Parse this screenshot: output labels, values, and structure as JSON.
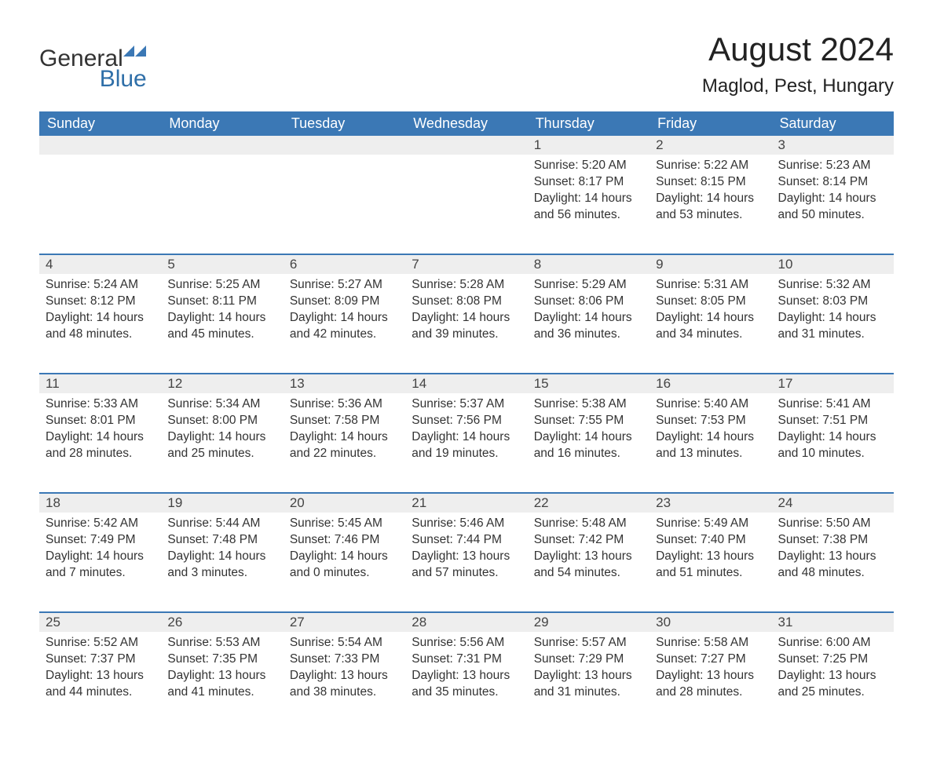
{
  "brand": {
    "general": "General",
    "blue": "Blue"
  },
  "title": "August 2024",
  "location": "Maglod, Pest, Hungary",
  "colors": {
    "header_bg": "#3b78b5",
    "header_text": "#ffffff",
    "daynum_bg": "#eeeeee",
    "accent_line": "#3b78b5",
    "body_text": "#333333",
    "brand_blue": "#2f6fa8",
    "background": "#ffffff"
  },
  "typography": {
    "title_fontsize": 42,
    "location_fontsize": 24,
    "dayheader_fontsize": 18,
    "cell_fontsize": 15.5
  },
  "day_headers": [
    "Sunday",
    "Monday",
    "Tuesday",
    "Wednesday",
    "Thursday",
    "Friday",
    "Saturday"
  ],
  "weeks": [
    [
      null,
      null,
      null,
      null,
      {
        "n": "1",
        "sunrise": "Sunrise: 5:20 AM",
        "sunset": "Sunset: 8:17 PM",
        "daylight": "Daylight: 14 hours and 56 minutes."
      },
      {
        "n": "2",
        "sunrise": "Sunrise: 5:22 AM",
        "sunset": "Sunset: 8:15 PM",
        "daylight": "Daylight: 14 hours and 53 minutes."
      },
      {
        "n": "3",
        "sunrise": "Sunrise: 5:23 AM",
        "sunset": "Sunset: 8:14 PM",
        "daylight": "Daylight: 14 hours and 50 minutes."
      }
    ],
    [
      {
        "n": "4",
        "sunrise": "Sunrise: 5:24 AM",
        "sunset": "Sunset: 8:12 PM",
        "daylight": "Daylight: 14 hours and 48 minutes."
      },
      {
        "n": "5",
        "sunrise": "Sunrise: 5:25 AM",
        "sunset": "Sunset: 8:11 PM",
        "daylight": "Daylight: 14 hours and 45 minutes."
      },
      {
        "n": "6",
        "sunrise": "Sunrise: 5:27 AM",
        "sunset": "Sunset: 8:09 PM",
        "daylight": "Daylight: 14 hours and 42 minutes."
      },
      {
        "n": "7",
        "sunrise": "Sunrise: 5:28 AM",
        "sunset": "Sunset: 8:08 PM",
        "daylight": "Daylight: 14 hours and 39 minutes."
      },
      {
        "n": "8",
        "sunrise": "Sunrise: 5:29 AM",
        "sunset": "Sunset: 8:06 PM",
        "daylight": "Daylight: 14 hours and 36 minutes."
      },
      {
        "n": "9",
        "sunrise": "Sunrise: 5:31 AM",
        "sunset": "Sunset: 8:05 PM",
        "daylight": "Daylight: 14 hours and 34 minutes."
      },
      {
        "n": "10",
        "sunrise": "Sunrise: 5:32 AM",
        "sunset": "Sunset: 8:03 PM",
        "daylight": "Daylight: 14 hours and 31 minutes."
      }
    ],
    [
      {
        "n": "11",
        "sunrise": "Sunrise: 5:33 AM",
        "sunset": "Sunset: 8:01 PM",
        "daylight": "Daylight: 14 hours and 28 minutes."
      },
      {
        "n": "12",
        "sunrise": "Sunrise: 5:34 AM",
        "sunset": "Sunset: 8:00 PM",
        "daylight": "Daylight: 14 hours and 25 minutes."
      },
      {
        "n": "13",
        "sunrise": "Sunrise: 5:36 AM",
        "sunset": "Sunset: 7:58 PM",
        "daylight": "Daylight: 14 hours and 22 minutes."
      },
      {
        "n": "14",
        "sunrise": "Sunrise: 5:37 AM",
        "sunset": "Sunset: 7:56 PM",
        "daylight": "Daylight: 14 hours and 19 minutes."
      },
      {
        "n": "15",
        "sunrise": "Sunrise: 5:38 AM",
        "sunset": "Sunset: 7:55 PM",
        "daylight": "Daylight: 14 hours and 16 minutes."
      },
      {
        "n": "16",
        "sunrise": "Sunrise: 5:40 AM",
        "sunset": "Sunset: 7:53 PM",
        "daylight": "Daylight: 14 hours and 13 minutes."
      },
      {
        "n": "17",
        "sunrise": "Sunrise: 5:41 AM",
        "sunset": "Sunset: 7:51 PM",
        "daylight": "Daylight: 14 hours and 10 minutes."
      }
    ],
    [
      {
        "n": "18",
        "sunrise": "Sunrise: 5:42 AM",
        "sunset": "Sunset: 7:49 PM",
        "daylight": "Daylight: 14 hours and 7 minutes."
      },
      {
        "n": "19",
        "sunrise": "Sunrise: 5:44 AM",
        "sunset": "Sunset: 7:48 PM",
        "daylight": "Daylight: 14 hours and 3 minutes."
      },
      {
        "n": "20",
        "sunrise": "Sunrise: 5:45 AM",
        "sunset": "Sunset: 7:46 PM",
        "daylight": "Daylight: 14 hours and 0 minutes."
      },
      {
        "n": "21",
        "sunrise": "Sunrise: 5:46 AM",
        "sunset": "Sunset: 7:44 PM",
        "daylight": "Daylight: 13 hours and 57 minutes."
      },
      {
        "n": "22",
        "sunrise": "Sunrise: 5:48 AM",
        "sunset": "Sunset: 7:42 PM",
        "daylight": "Daylight: 13 hours and 54 minutes."
      },
      {
        "n": "23",
        "sunrise": "Sunrise: 5:49 AM",
        "sunset": "Sunset: 7:40 PM",
        "daylight": "Daylight: 13 hours and 51 minutes."
      },
      {
        "n": "24",
        "sunrise": "Sunrise: 5:50 AM",
        "sunset": "Sunset: 7:38 PM",
        "daylight": "Daylight: 13 hours and 48 minutes."
      }
    ],
    [
      {
        "n": "25",
        "sunrise": "Sunrise: 5:52 AM",
        "sunset": "Sunset: 7:37 PM",
        "daylight": "Daylight: 13 hours and 44 minutes."
      },
      {
        "n": "26",
        "sunrise": "Sunrise: 5:53 AM",
        "sunset": "Sunset: 7:35 PM",
        "daylight": "Daylight: 13 hours and 41 minutes."
      },
      {
        "n": "27",
        "sunrise": "Sunrise: 5:54 AM",
        "sunset": "Sunset: 7:33 PM",
        "daylight": "Daylight: 13 hours and 38 minutes."
      },
      {
        "n": "28",
        "sunrise": "Sunrise: 5:56 AM",
        "sunset": "Sunset: 7:31 PM",
        "daylight": "Daylight: 13 hours and 35 minutes."
      },
      {
        "n": "29",
        "sunrise": "Sunrise: 5:57 AM",
        "sunset": "Sunset: 7:29 PM",
        "daylight": "Daylight: 13 hours and 31 minutes."
      },
      {
        "n": "30",
        "sunrise": "Sunrise: 5:58 AM",
        "sunset": "Sunset: 7:27 PM",
        "daylight": "Daylight: 13 hours and 28 minutes."
      },
      {
        "n": "31",
        "sunrise": "Sunrise: 6:00 AM",
        "sunset": "Sunset: 7:25 PM",
        "daylight": "Daylight: 13 hours and 25 minutes."
      }
    ]
  ]
}
